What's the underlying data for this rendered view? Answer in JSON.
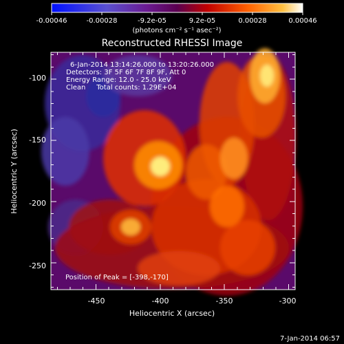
{
  "colorbar": {
    "tick_labels": [
      "-0.00046",
      "-0.00028",
      "-9.2e-05",
      "9.2e-05",
      "0.00028",
      "0.00046"
    ],
    "units_label": "(photons cm⁻² s⁻¹ asec⁻²)"
  },
  "image": {
    "title": "Reconstructed RHESSI Image",
    "info_line1": "6-Jan-2014 13:14:26.000 to 13:20:26.000",
    "info_line2": "Detectors: 3F 5F 6F 7F 8F 9F, Att 0",
    "info_line3": "Energy Range: 12.0 - 25.0 keV",
    "info_line4": "Clean     Total counts: 1.29E+04",
    "peak_label": "Position of Peak = [-398,-170]",
    "xlabel": "Heliocentric X (arcsec)",
    "ylabel": "Heliocentric Y (arcsec)",
    "x_ticks": [
      "-450",
      "-400",
      "-350",
      "-300"
    ],
    "y_ticks": [
      "-100",
      "-150",
      "-200",
      "-250"
    ],
    "footer_date": "7-Jan-2014 06:57",
    "xlim": [
      -485,
      -295
    ],
    "ylim": [
      -272,
      -78
    ],
    "peak": [
      -398,
      -170
    ]
  },
  "colors": {
    "background": "#000000",
    "colormap": [
      "#1010ff",
      "#5a4ad0",
      "#4a2a80",
      "#601070",
      "#b00000",
      "#ff4000",
      "#ff9000",
      "#ffe040",
      "#ffffe0"
    ]
  }
}
